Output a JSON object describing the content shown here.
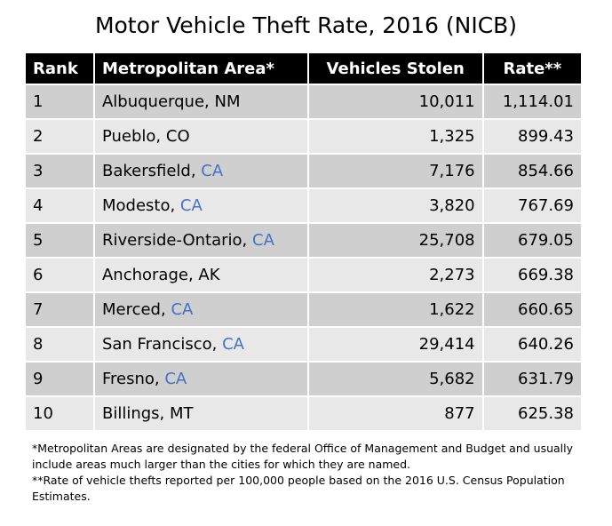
{
  "title": "Motor Vehicle Theft Rate, 2016 (NICB)",
  "table": {
    "columns": [
      "Rank",
      "Metropolitan Area*",
      "Vehicles Stolen",
      "Rate**"
    ],
    "rows": [
      {
        "rank": "1",
        "city": "Albuquerque,",
        "state": {
          "text": "NM",
          "color": "#000000"
        },
        "vehicles": "10,011",
        "rate": "1,114.01"
      },
      {
        "rank": "2",
        "city": "Pueblo,",
        "state": {
          "text": "CO",
          "color": "#000000"
        },
        "vehicles": "1,325",
        "rate": "899.43"
      },
      {
        "rank": "3",
        "city": "Bakersfield,",
        "state": {
          "text": "CA",
          "color": "#4472c4"
        },
        "vehicles": "7,176",
        "rate": "854.66"
      },
      {
        "rank": "4",
        "city": "Modesto,",
        "state": {
          "text": "CA",
          "color": "#4472c4"
        },
        "vehicles": "3,820",
        "rate": "767.69"
      },
      {
        "rank": "5",
        "city": "Riverside-Ontario,",
        "state": {
          "text": "CA",
          "color": "#4472c4"
        },
        "vehicles": "25,708",
        "rate": "679.05"
      },
      {
        "rank": "6",
        "city": "Anchorage,",
        "state": {
          "text": "AK",
          "color": "#000000"
        },
        "vehicles": "2,273",
        "rate": "669.38"
      },
      {
        "rank": "7",
        "city": "Merced,",
        "state": {
          "text": "CA",
          "color": "#4472c4"
        },
        "vehicles": "1,622",
        "rate": "660.65"
      },
      {
        "rank": "8",
        "city": "San Francisco,",
        "state": {
          "text": "CA",
          "color": "#4472c4"
        },
        "vehicles": "29,414",
        "rate": "640.26"
      },
      {
        "rank": "9",
        "city": "Fresno,",
        "state": {
          "text": "CA",
          "color": "#4472c4"
        },
        "vehicles": "5,682",
        "rate": "631.79"
      },
      {
        "rank": "10",
        "city": "Billings,",
        "state": {
          "text": "MT",
          "color": "#000000"
        },
        "vehicles": "877",
        "rate": "625.38"
      }
    ]
  },
  "footnotes": [
    "*Metropolitan Areas are designated by the federal Office of Management and Budget and usually include areas much larger than the cities for which they are named.",
    "**Rate of vehicle thefts reported per 100,000 people based on the 2016 U.S. Census Population Estimates."
  ]
}
